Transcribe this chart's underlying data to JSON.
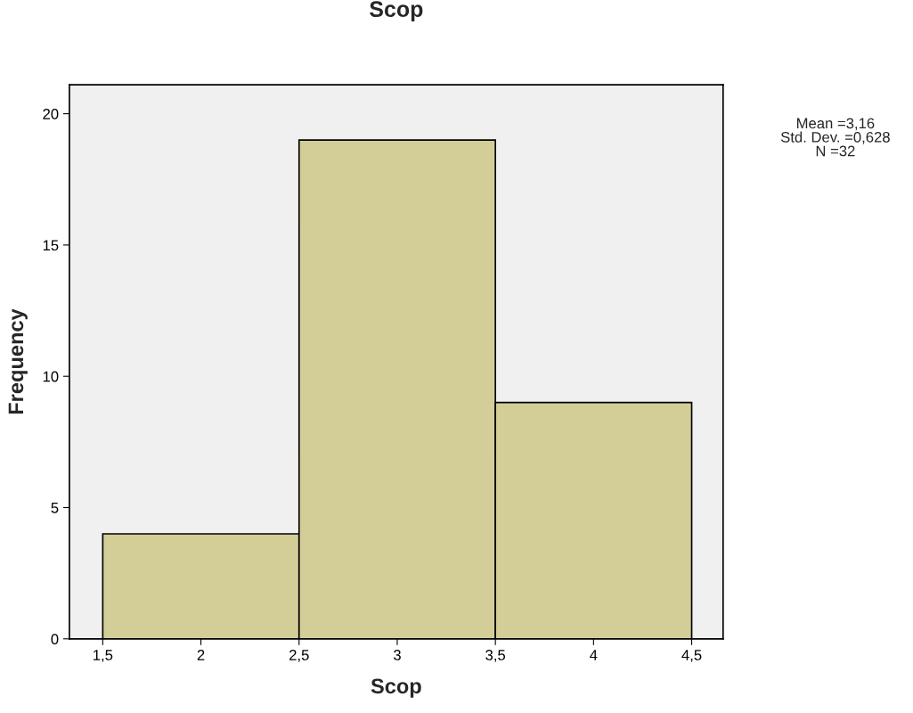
{
  "chart_data": {
    "type": "histogram",
    "title": "Scop",
    "xlabel": "Scop",
    "ylabel": "Frequency",
    "bins": [
      1.5,
      2.5,
      3.5,
      4.5
    ],
    "values": [
      4,
      19,
      9
    ],
    "color": "#d3ce98",
    "xlim": [
      1.33,
      4.66
    ],
    "ylim": [
      0,
      21.1
    ],
    "xticks": [
      {
        "value": 1.5,
        "label": "1,5"
      },
      2,
      {
        "value": 2.5,
        "label": "2,5"
      },
      3,
      {
        "value": 3.5,
        "label": "3,5"
      },
      4,
      {
        "value": 4.5,
        "label": "4,5"
      }
    ],
    "yticks": [
      0,
      5,
      10,
      15,
      20
    ],
    "annotations": [
      "Mean =3,16\nStd. Dev. =0,628\nN =32"
    ],
    "grid": false,
    "legend": false
  }
}
